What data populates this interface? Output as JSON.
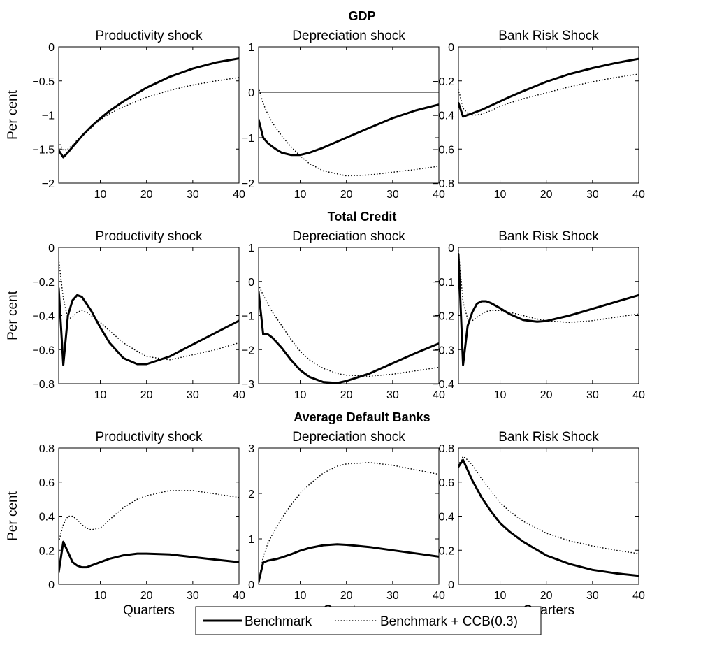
{
  "figure": {
    "legend": {
      "entries": [
        {
          "label": "Benchmark",
          "style": "solid"
        },
        {
          "label": "Benchmark + CCB(0.3)",
          "style": "dotted"
        }
      ],
      "placement": "bottom-center"
    }
  },
  "chart_data": [
    {
      "type": "line",
      "row_title": "GDP",
      "title": "Productivity shock",
      "xlabel": "",
      "ylabel": "Per cent",
      "xlim": [
        1,
        40
      ],
      "ylim": [
        -2,
        0
      ],
      "xticks": [
        10,
        20,
        30,
        40
      ],
      "yticks": [
        -2,
        -1.5,
        -1,
        -0.5,
        0
      ],
      "ytick_labels": [
        "−2",
        "−1.5",
        "−1",
        "−0.5",
        "0"
      ],
      "zero_line": false,
      "x": [
        1,
        2,
        3,
        4,
        5,
        6,
        8,
        10,
        12,
        15,
        20,
        25,
        30,
        35,
        40
      ],
      "series": [
        {
          "name": "Benchmark",
          "style": "solid",
          "values": [
            -1.52,
            -1.62,
            -1.55,
            -1.47,
            -1.39,
            -1.31,
            -1.17,
            -1.05,
            -0.94,
            -0.8,
            -0.6,
            -0.44,
            -0.32,
            -0.23,
            -0.17
          ]
        },
        {
          "name": "Benchmark + CCB(0.3)",
          "style": "dotted",
          "values": [
            -1.4,
            -1.52,
            -1.5,
            -1.44,
            -1.37,
            -1.31,
            -1.19,
            -1.07,
            -0.98,
            -0.88,
            -0.74,
            -0.64,
            -0.56,
            -0.5,
            -0.45
          ]
        }
      ]
    },
    {
      "type": "line",
      "row_title": "",
      "title": "Depreciation shock",
      "xlabel": "",
      "ylabel": "",
      "xlim": [
        1,
        40
      ],
      "ylim": [
        -2,
        1
      ],
      "xticks": [
        10,
        20,
        30,
        40
      ],
      "yticks": [
        -2,
        -1,
        0,
        1
      ],
      "ytick_labels": [
        "−2",
        "−1",
        "0",
        "1"
      ],
      "zero_line": true,
      "x": [
        1,
        2,
        3,
        4,
        5,
        6,
        8,
        10,
        12,
        15,
        20,
        25,
        30,
        35,
        40
      ],
      "series": [
        {
          "name": "Benchmark",
          "style": "solid",
          "values": [
            -0.6,
            -1.0,
            -1.12,
            -1.2,
            -1.27,
            -1.33,
            -1.38,
            -1.38,
            -1.33,
            -1.22,
            -1.0,
            -0.78,
            -0.57,
            -0.4,
            -0.27
          ]
        },
        {
          "name": "Benchmark + CCB(0.3)",
          "style": "dotted",
          "values": [
            0.1,
            -0.25,
            -0.48,
            -0.67,
            -0.82,
            -0.96,
            -1.2,
            -1.4,
            -1.57,
            -1.73,
            -1.84,
            -1.82,
            -1.76,
            -1.7,
            -1.63
          ]
        }
      ]
    },
    {
      "type": "line",
      "row_title": "",
      "title": "Bank Risk Shock",
      "xlabel": "",
      "ylabel": "",
      "xlim": [
        1,
        40
      ],
      "ylim": [
        -0.8,
        0
      ],
      "xticks": [
        10,
        20,
        30,
        40
      ],
      "yticks": [
        -0.8,
        -0.6,
        -0.4,
        -0.2,
        0
      ],
      "ytick_labels": [
        "−0.8",
        "−0.6",
        "−0.4",
        "−0.2",
        "0"
      ],
      "zero_line": false,
      "x": [
        1,
        2,
        3,
        4,
        5,
        6,
        8,
        10,
        12,
        15,
        20,
        25,
        30,
        35,
        40
      ],
      "series": [
        {
          "name": "Benchmark",
          "style": "solid",
          "values": [
            -0.33,
            -0.41,
            -0.4,
            -0.39,
            -0.38,
            -0.37,
            -0.345,
            -0.32,
            -0.295,
            -0.26,
            -0.205,
            -0.16,
            -0.125,
            -0.095,
            -0.07
          ]
        },
        {
          "name": "Benchmark + CCB(0.3)",
          "style": "dotted",
          "values": [
            -0.25,
            -0.36,
            -0.39,
            -0.4,
            -0.4,
            -0.395,
            -0.375,
            -0.35,
            -0.33,
            -0.305,
            -0.27,
            -0.235,
            -0.205,
            -0.18,
            -0.16
          ]
        }
      ]
    },
    {
      "type": "line",
      "row_title": "Total Credit",
      "title": "Productivity shock",
      "xlabel": "",
      "ylabel": "Per cent",
      "xlim": [
        1,
        40
      ],
      "ylim": [
        -0.8,
        0
      ],
      "xticks": [
        10,
        20,
        30,
        40
      ],
      "yticks": [
        -0.8,
        -0.6,
        -0.4,
        -0.2,
        0
      ],
      "ytick_labels": [
        "−0.8",
        "−0.6",
        "−0.4",
        "−0.2",
        "0"
      ],
      "zero_line": false,
      "x": [
        1,
        2,
        3,
        4,
        5,
        6,
        7,
        8,
        10,
        12,
        15,
        18,
        20,
        25,
        30,
        35,
        40
      ],
      "series": [
        {
          "name": "Benchmark",
          "style": "solid",
          "values": [
            -0.24,
            -0.69,
            -0.4,
            -0.31,
            -0.28,
            -0.29,
            -0.33,
            -0.37,
            -0.47,
            -0.56,
            -0.65,
            -0.685,
            -0.685,
            -0.64,
            -0.57,
            -0.5,
            -0.43
          ]
        },
        {
          "name": "Benchmark + CCB(0.3)",
          "style": "dotted",
          "values": [
            -0.07,
            -0.3,
            -0.42,
            -0.41,
            -0.38,
            -0.37,
            -0.38,
            -0.4,
            -0.44,
            -0.49,
            -0.56,
            -0.61,
            -0.64,
            -0.66,
            -0.63,
            -0.6,
            -0.56
          ]
        }
      ]
    },
    {
      "type": "line",
      "row_title": "",
      "title": "Depreciation shock",
      "xlabel": "",
      "ylabel": "",
      "xlim": [
        1,
        40
      ],
      "ylim": [
        -3,
        1
      ],
      "xticks": [
        10,
        20,
        30,
        40
      ],
      "yticks": [
        -3,
        -2,
        -1,
        0,
        1
      ],
      "ytick_labels": [
        "−3",
        "−2",
        "−1",
        "0",
        "1"
      ],
      "zero_line": false,
      "x": [
        1,
        2,
        3,
        4,
        5,
        6,
        8,
        10,
        12,
        15,
        18,
        20,
        25,
        30,
        35,
        40
      ],
      "series": [
        {
          "name": "Benchmark",
          "style": "solid",
          "values": [
            -0.3,
            -1.55,
            -1.55,
            -1.65,
            -1.8,
            -1.95,
            -2.3,
            -2.6,
            -2.8,
            -2.95,
            -2.98,
            -2.92,
            -2.7,
            -2.4,
            -2.1,
            -1.82
          ]
        },
        {
          "name": "Benchmark + CCB(0.3)",
          "style": "dotted",
          "values": [
            -0.1,
            -0.4,
            -0.65,
            -0.9,
            -1.1,
            -1.3,
            -1.7,
            -2.05,
            -2.3,
            -2.55,
            -2.7,
            -2.75,
            -2.78,
            -2.72,
            -2.62,
            -2.52
          ]
        }
      ]
    },
    {
      "type": "line",
      "row_title": "",
      "title": "Bank Risk Shock",
      "xlabel": "",
      "ylabel": "",
      "xlim": [
        1,
        40
      ],
      "ylim": [
        -0.4,
        0
      ],
      "xticks": [
        10,
        20,
        30,
        40
      ],
      "yticks": [
        -0.4,
        -0.3,
        -0.2,
        -0.1,
        0
      ],
      "ytick_labels": [
        "−0.4",
        "−0.3",
        "−0.2",
        "−0.1",
        "0"
      ],
      "zero_line": false,
      "x": [
        1,
        2,
        3,
        4,
        5,
        6,
        7,
        8,
        10,
        12,
        15,
        18,
        20,
        25,
        30,
        35,
        40
      ],
      "series": [
        {
          "name": "Benchmark",
          "style": "solid",
          "values": [
            -0.02,
            -0.345,
            -0.23,
            -0.19,
            -0.165,
            -0.158,
            -0.158,
            -0.163,
            -0.178,
            -0.195,
            -0.213,
            -0.218,
            -0.216,
            -0.2,
            -0.18,
            -0.16,
            -0.14
          ]
        },
        {
          "name": "Benchmark + CCB(0.3)",
          "style": "dotted",
          "values": [
            -0.01,
            -0.16,
            -0.21,
            -0.215,
            -0.205,
            -0.195,
            -0.188,
            -0.185,
            -0.185,
            -0.19,
            -0.2,
            -0.21,
            -0.215,
            -0.22,
            -0.215,
            -0.205,
            -0.195
          ]
        }
      ]
    },
    {
      "type": "line",
      "row_title": "Average Default Banks",
      "title": "Productivity shock",
      "xlabel": "Quarters",
      "ylabel": "Per cent",
      "xlim": [
        1,
        40
      ],
      "ylim": [
        0,
        0.8
      ],
      "xticks": [
        10,
        20,
        30,
        40
      ],
      "yticks": [
        0,
        0.2,
        0.4,
        0.6,
        0.8
      ],
      "ytick_labels": [
        "0",
        "0.2",
        "0.4",
        "0.6",
        "0.8"
      ],
      "zero_line": false,
      "x": [
        1,
        2,
        3,
        4,
        5,
        6,
        7,
        8,
        10,
        12,
        15,
        18,
        20,
        25,
        30,
        35,
        40
      ],
      "series": [
        {
          "name": "Benchmark",
          "style": "solid",
          "values": [
            0.07,
            0.25,
            0.19,
            0.13,
            0.11,
            0.1,
            0.1,
            0.11,
            0.13,
            0.15,
            0.17,
            0.18,
            0.18,
            0.175,
            0.16,
            0.145,
            0.13
          ]
        },
        {
          "name": "Benchmark + CCB(0.3)",
          "style": "dotted",
          "values": [
            0.25,
            0.35,
            0.4,
            0.4,
            0.38,
            0.35,
            0.33,
            0.32,
            0.33,
            0.38,
            0.45,
            0.5,
            0.52,
            0.55,
            0.55,
            0.53,
            0.51
          ]
        }
      ]
    },
    {
      "type": "line",
      "row_title": "",
      "title": "Depreciation shock",
      "xlabel": "Quarters",
      "ylabel": "",
      "xlim": [
        1,
        40
      ],
      "ylim": [
        0,
        3
      ],
      "xticks": [
        10,
        20,
        30,
        40
      ],
      "yticks": [
        0,
        1,
        2,
        3
      ],
      "ytick_labels": [
        "0",
        "1",
        "2",
        "3"
      ],
      "zero_line": false,
      "x": [
        1,
        2,
        3,
        4,
        5,
        6,
        8,
        10,
        12,
        15,
        18,
        20,
        25,
        30,
        35,
        40
      ],
      "series": [
        {
          "name": "Benchmark",
          "style": "solid",
          "values": [
            0.05,
            0.48,
            0.52,
            0.54,
            0.56,
            0.59,
            0.66,
            0.74,
            0.8,
            0.86,
            0.88,
            0.87,
            0.82,
            0.75,
            0.68,
            0.61
          ]
        },
        {
          "name": "Benchmark + CCB(0.3)",
          "style": "dotted",
          "values": [
            0.05,
            0.6,
            0.9,
            1.1,
            1.28,
            1.45,
            1.75,
            2.0,
            2.2,
            2.45,
            2.6,
            2.65,
            2.68,
            2.62,
            2.52,
            2.42
          ]
        }
      ]
    },
    {
      "type": "line",
      "row_title": "",
      "title": "Bank Risk Shock",
      "xlabel": "Quarters",
      "ylabel": "",
      "xlim": [
        1,
        40
      ],
      "ylim": [
        0,
        0.8
      ],
      "xticks": [
        10,
        20,
        30,
        40
      ],
      "yticks": [
        0,
        0.2,
        0.4,
        0.6,
        0.8
      ],
      "ytick_labels": [
        "0",
        "0.2",
        "0.4",
        "0.6",
        "0.8"
      ],
      "zero_line": false,
      "x": [
        1,
        2,
        3,
        4,
        5,
        6,
        8,
        10,
        12,
        15,
        20,
        25,
        30,
        35,
        40
      ],
      "series": [
        {
          "name": "Benchmark",
          "style": "solid",
          "values": [
            0.69,
            0.73,
            0.67,
            0.61,
            0.56,
            0.51,
            0.43,
            0.36,
            0.31,
            0.25,
            0.17,
            0.12,
            0.085,
            0.065,
            0.05
          ]
        },
        {
          "name": "Benchmark + CCB(0.3)",
          "style": "dotted",
          "values": [
            0.7,
            0.75,
            0.73,
            0.7,
            0.66,
            0.62,
            0.55,
            0.48,
            0.43,
            0.37,
            0.3,
            0.255,
            0.225,
            0.2,
            0.18
          ]
        }
      ]
    }
  ]
}
